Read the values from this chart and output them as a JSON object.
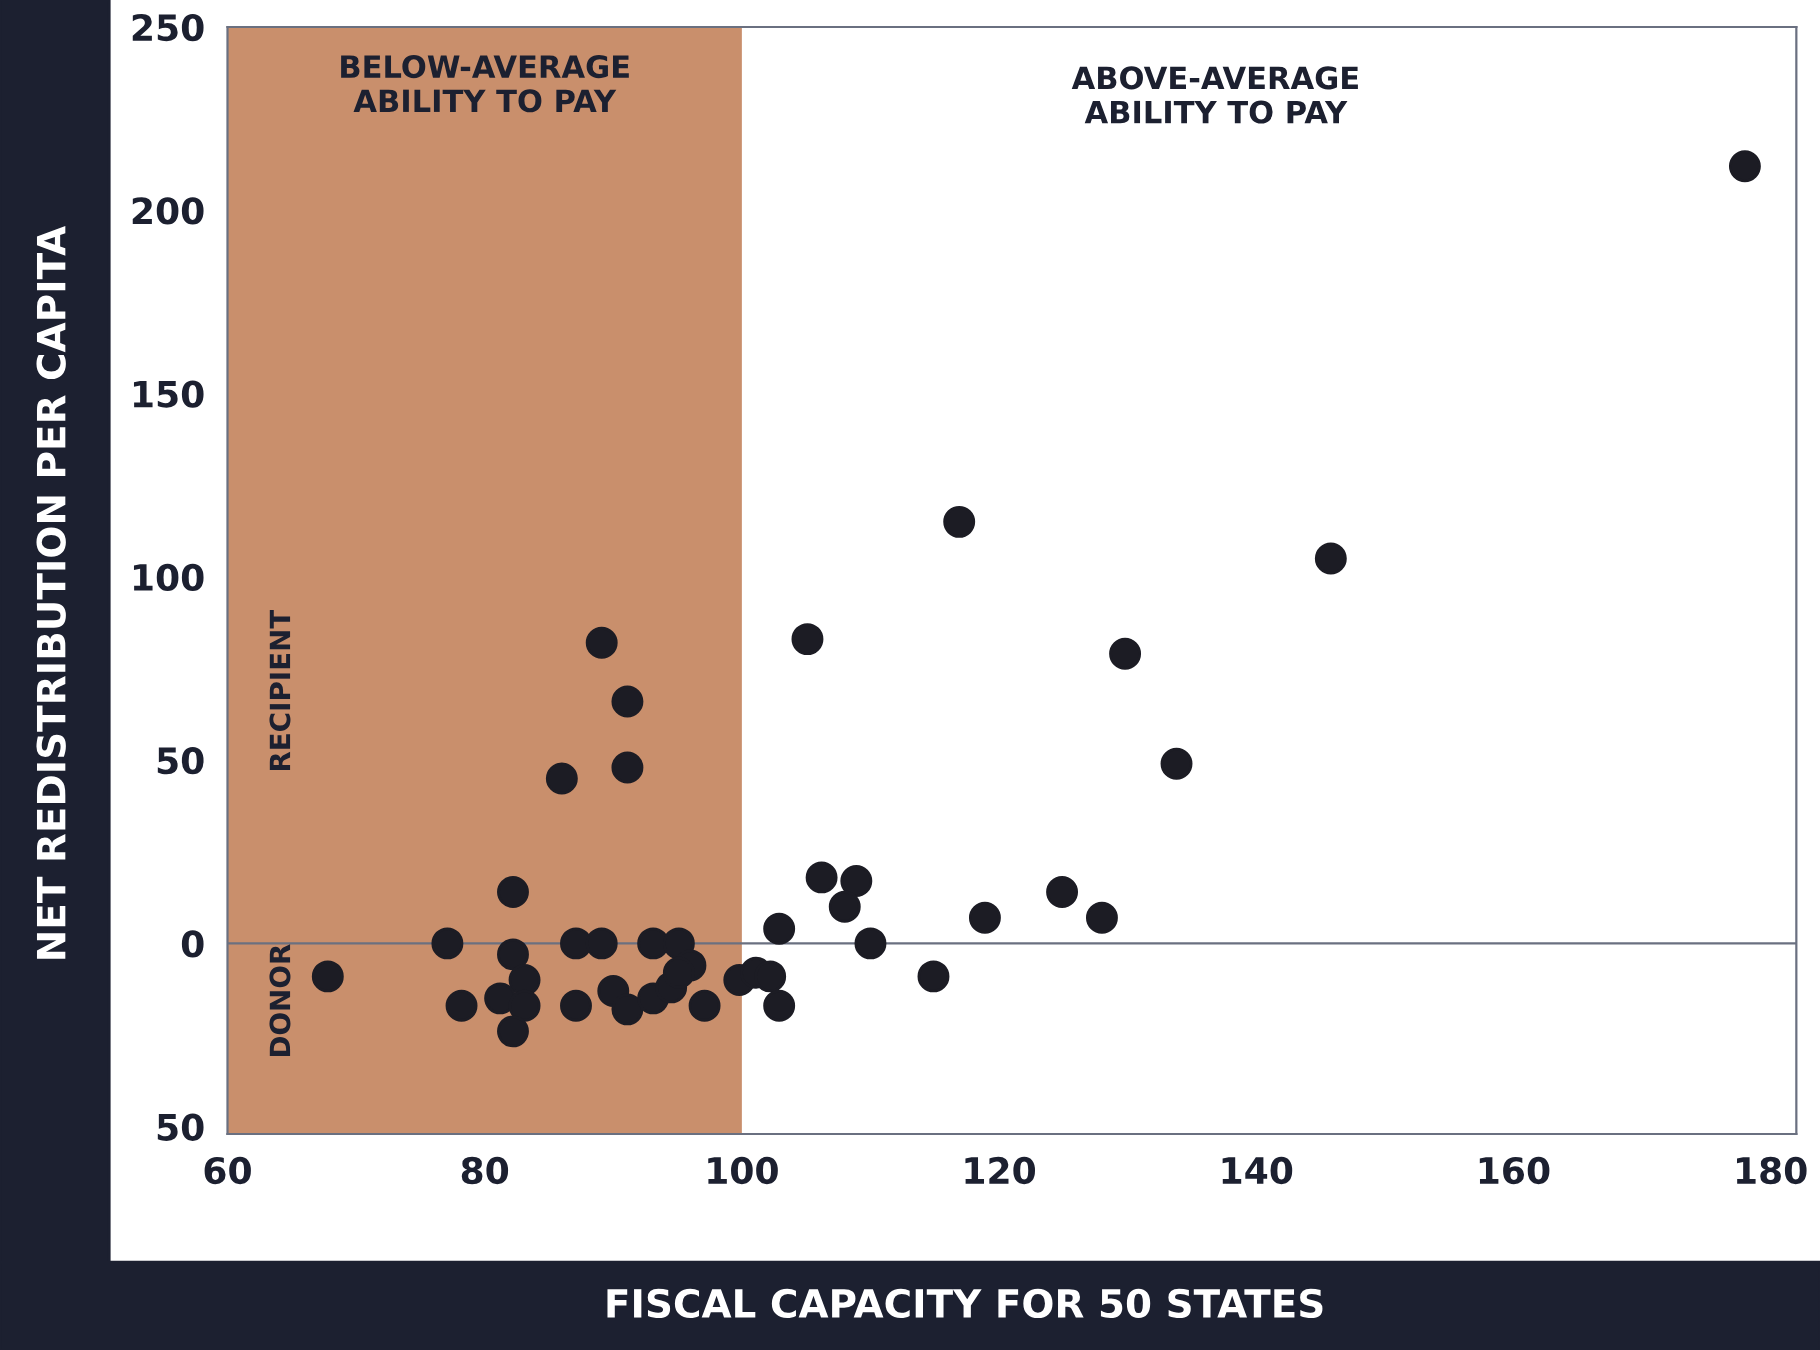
{
  "chart_data": {
    "type": "scatter",
    "xlabel": "FISCAL CAPACITY FOR 50 STATES",
    "ylabel": "NET REDISTRIBUTION PER CAPITA",
    "x": [
      67.8,
      77.1,
      78.2,
      82.2,
      82.2,
      83.1,
      81.2,
      83.1,
      82.2,
      86,
      87.1,
      87.1,
      89.1,
      89.1,
      91.1,
      91.1,
      90,
      91.1,
      93.1,
      95.1,
      93.1,
      94.5,
      96,
      95.1,
      97.1,
      99.8,
      101.1,
      102.2,
      102.9,
      102.9,
      116.9,
      105.1,
      145.8,
      129.8,
      133.8,
      106.2,
      108.9,
      108,
      110,
      118.9,
      124.9,
      128,
      114.9,
      178
    ],
    "series": [
      {
        "color": "#1c1c24",
        "values": [
          -9,
          0,
          -17,
          14,
          -3,
          -10,
          -15,
          -17,
          -24,
          45,
          0,
          -17,
          0,
          82,
          66,
          48,
          -13,
          -18,
          0,
          0,
          -15,
          -12,
          -6,
          -8,
          -17,
          -10,
          -8,
          -9,
          4,
          -17,
          115,
          83,
          105,
          79,
          49,
          18,
          17,
          10,
          0,
          7,
          14,
          7,
          -9,
          212
        ]
      }
    ],
    "xlim": [
      60,
      182
    ],
    "ylim": [
      -52,
      250
    ],
    "xticks": [
      60,
      80,
      100,
      120,
      140,
      160,
      180
    ],
    "yticks": [
      {
        "value": -50,
        "label": "50"
      },
      0,
      50,
      100,
      150,
      200,
      250
    ],
    "marker": "circle",
    "grid": false,
    "ref_lines": [
      {
        "axis": "y",
        "value": 0,
        "color": "#6a7080"
      }
    ],
    "bands": [
      {
        "axis": "x",
        "from": 60,
        "to": 100,
        "label": "BELOW-AVERAGE\nABILITY TO PAY",
        "color": "#c98f6c"
      }
    ],
    "annotations": [
      "ABOVE-AVERAGE\nABILITY TO PAY",
      "RECIPIENT",
      "DONOR"
    ]
  }
}
